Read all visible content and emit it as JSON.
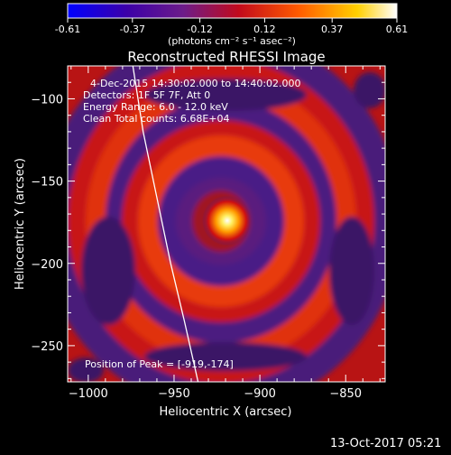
{
  "colorbar": {
    "ticks": [
      "-0.61",
      "-0.37",
      "-0.12",
      "0.12",
      "0.37",
      "0.61"
    ],
    "tick_values": [
      -0.61,
      -0.37,
      -0.12,
      0.12,
      0.37,
      0.61
    ],
    "range": [
      -0.61,
      0.61
    ],
    "units": "(photons cm⁻² s⁻¹ asec⁻²)",
    "colormap_stops": [
      "#0000ff",
      "#3c00a8",
      "#6c1c8a",
      "#c20a1c",
      "#ff5a00",
      "#ffd000",
      "#ffffff"
    ]
  },
  "plot": {
    "title": "Reconstructed RHESSI Image",
    "info_lines": [
      "4-Dec-2015 14:30:02.000 to 14:40:02.000",
      "Detectors: 1F 5F 7F, Att 0",
      "Energy Range: 6.0 - 12.0 keV",
      "Clean     Total counts: 6.68E+04"
    ],
    "peak_text": "Position of Peak = [-919,-174]"
  },
  "footer": {
    "timestamp": "13-Oct-2017 05:21"
  },
  "chart_data": {
    "type": "heatmap",
    "title": "Reconstructed RHESSI Image",
    "xlabel": "Heliocentric X (arcsec)",
    "ylabel": "Heliocentric Y (arcsec)",
    "xlim": [
      -1012,
      -827
    ],
    "ylim": [
      -272,
      -80
    ],
    "x_ticks": [
      -1000,
      -950,
      -900,
      -850
    ],
    "x_tick_labels": [
      "−1000",
      "−950",
      "−900",
      "−850"
    ],
    "y_ticks": [
      -100,
      -150,
      -200,
      -250
    ],
    "y_tick_labels": [
      "−100",
      "−150",
      "−200",
      "−250"
    ],
    "peak": {
      "x": -919,
      "y": -174,
      "value": 0.61
    },
    "limb_points": [
      [
        -974,
        -80
      ],
      [
        -968,
        -120
      ],
      [
        -960,
        -160
      ],
      [
        -952,
        -200
      ],
      [
        -944,
        -235
      ],
      [
        -936,
        -272
      ]
    ],
    "color_range": [
      -0.61,
      0.61
    ]
  }
}
